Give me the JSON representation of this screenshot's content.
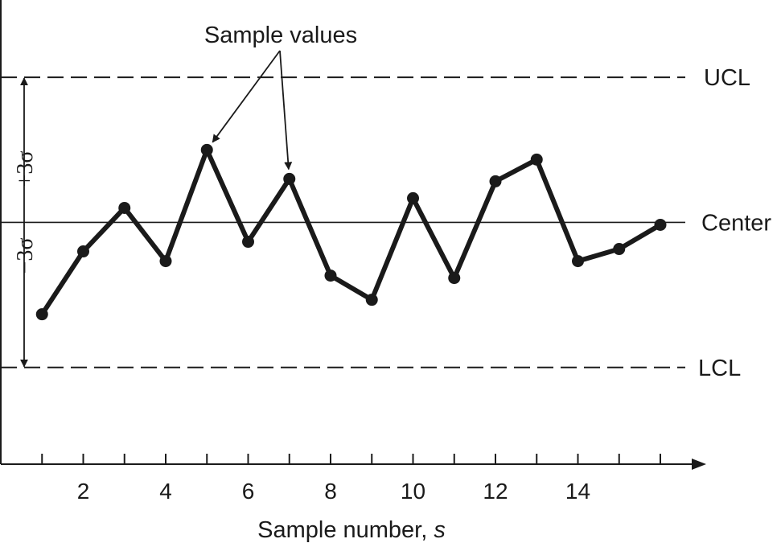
{
  "chart_data": {
    "type": "line",
    "title": "",
    "xlabel": "Sample number, ",
    "xlabel_var": "s",
    "ylabel": "",
    "x": [
      1,
      2,
      3,
      4,
      5,
      6,
      7,
      8,
      9,
      10,
      11,
      12,
      13,
      14,
      15,
      16
    ],
    "x_ticks": [
      2,
      4,
      6,
      8,
      10,
      12,
      14
    ],
    "x_tick_labels": [
      "2",
      "4",
      "6",
      "8",
      "10",
      "12",
      "14"
    ],
    "xlim": [
      0,
      16.8
    ],
    "ylim": [
      -5.0,
      4.6
    ],
    "series": [
      {
        "values": [
          -1.9,
          -0.6,
          0.3,
          -0.8,
          1.5,
          -0.4,
          0.9,
          -1.1,
          -1.6,
          0.5,
          -1.15,
          0.85,
          1.3,
          -0.8,
          -0.55,
          -0.05
        ]
      }
    ],
    "reference_lines": [
      {
        "label": "UCL",
        "value": 3,
        "style": "dashed"
      },
      {
        "label": "Center",
        "value": 0,
        "style": "solid"
      },
      {
        "label": "LCL",
        "value": -3,
        "style": "dashed"
      }
    ],
    "annotations": {
      "sample_values_label": "Sample values",
      "sample_values_targets": [
        5,
        7
      ],
      "plus_sigma_label": "+3σ",
      "minus_sigma_label": "−3σ"
    },
    "grid": false,
    "legend": "none"
  }
}
